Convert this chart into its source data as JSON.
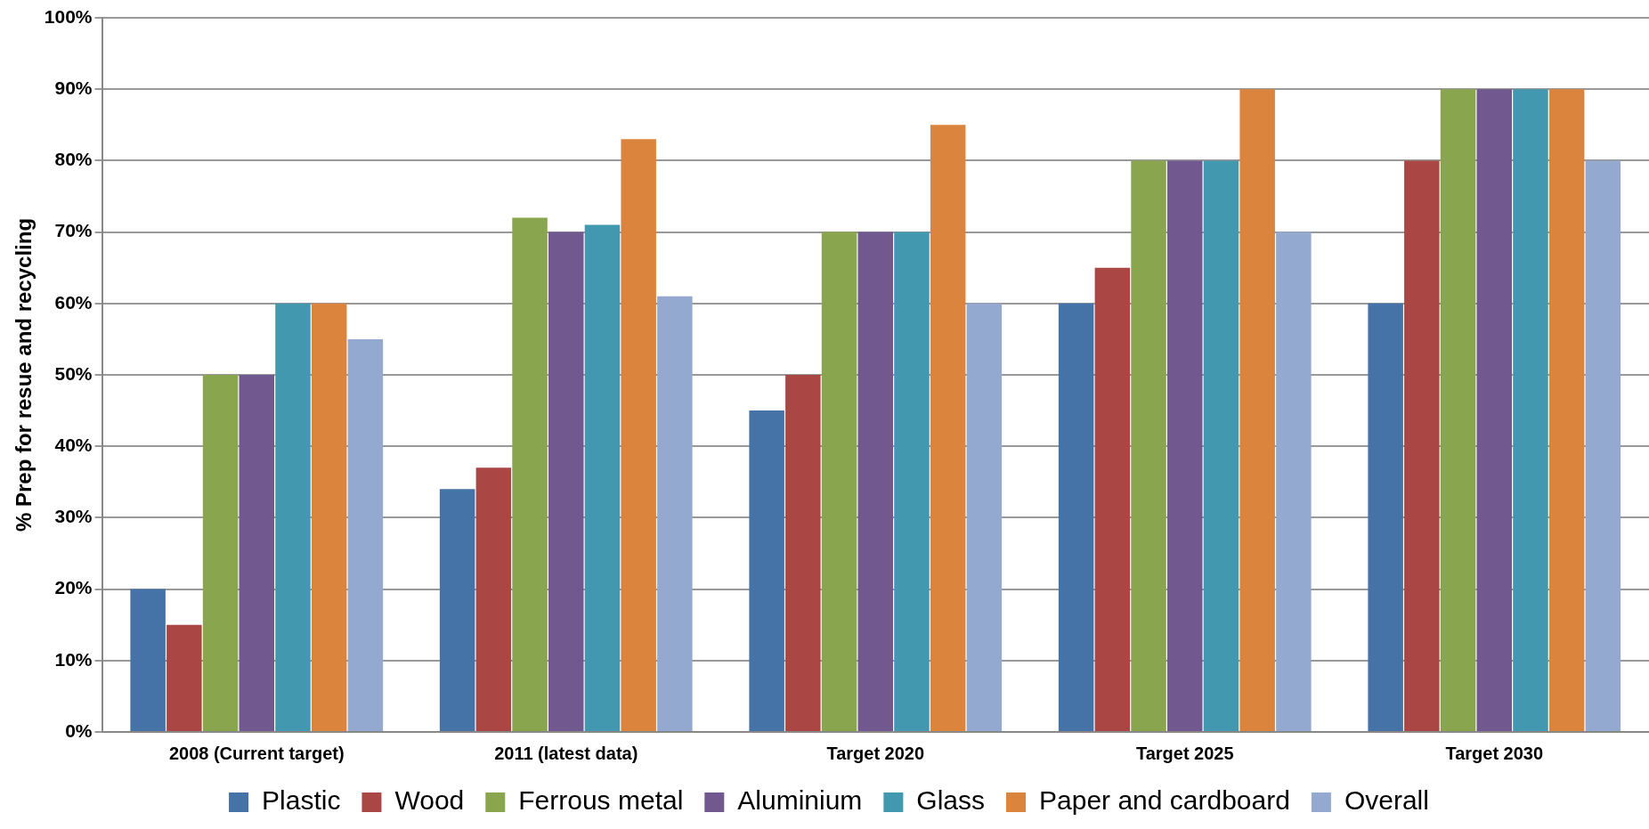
{
  "chart_data": {
    "type": "bar",
    "ylabel": "% Prep for resue and recycling",
    "categories": [
      "2008 (Current target)",
      "2011 (latest data)",
      "Target 2020",
      "Target 2025",
      "Target 2030"
    ],
    "series": [
      {
        "name": "Plastic",
        "color": "#4572a7",
        "values": [
          20,
          34,
          45,
          60,
          60
        ]
      },
      {
        "name": "Wood",
        "color": "#aa4643",
        "values": [
          15,
          37,
          50,
          65,
          80
        ]
      },
      {
        "name": "Ferrous metal",
        "color": "#89a54e",
        "values": [
          50,
          72,
          70,
          80,
          90
        ]
      },
      {
        "name": "Aluminium",
        "color": "#71588f",
        "values": [
          50,
          70,
          70,
          80,
          90
        ]
      },
      {
        "name": "Glass",
        "color": "#4198af",
        "values": [
          60,
          71,
          70,
          80,
          90
        ]
      },
      {
        "name": "Paper and cardboard",
        "color": "#db843d",
        "values": [
          60,
          83,
          85,
          90,
          90
        ]
      },
      {
        "name": "Overall",
        "color": "#93a9cf",
        "values": [
          55,
          61,
          60,
          70,
          80
        ]
      }
    ],
    "ylim": [
      0,
      100
    ],
    "yticks": [
      {
        "value": 0,
        "label": "0%"
      },
      {
        "value": 10,
        "label": "10%"
      },
      {
        "value": 20,
        "label": "20%"
      },
      {
        "value": 30,
        "label": "30%"
      },
      {
        "value": 40,
        "label": "40%"
      },
      {
        "value": 50,
        "label": "50%"
      },
      {
        "value": 60,
        "label": "60%"
      },
      {
        "value": 70,
        "label": "70%"
      },
      {
        "value": 80,
        "label": "80%"
      },
      {
        "value": 90,
        "label": "90%"
      },
      {
        "value": 100,
        "label": "100%"
      }
    ],
    "grid": "y",
    "legend": "bottom"
  }
}
